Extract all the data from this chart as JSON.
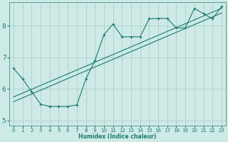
{
  "xlabel": "Humidex (Indice chaleur)",
  "xlim": [
    -0.5,
    23.5
  ],
  "ylim": [
    4.85,
    8.75
  ],
  "yticks": [
    5,
    6,
    7,
    8
  ],
  "xticks": [
    0,
    1,
    2,
    3,
    4,
    5,
    6,
    7,
    8,
    9,
    10,
    11,
    12,
    13,
    14,
    15,
    16,
    17,
    18,
    19,
    20,
    21,
    22,
    23
  ],
  "bg_color": "#ceeae6",
  "grid_color": "#aacfca",
  "line_color": "#1a7a6e",
  "series1_x": [
    0,
    1,
    2,
    3,
    4,
    5,
    6,
    7,
    8,
    9,
    10,
    11,
    12,
    13,
    14,
    15,
    16,
    17,
    18,
    19,
    20,
    21,
    22,
    23
  ],
  "series1_y": [
    6.65,
    6.32,
    5.92,
    5.52,
    5.45,
    5.45,
    5.45,
    5.5,
    6.32,
    6.9,
    7.72,
    8.05,
    7.65,
    7.65,
    7.65,
    8.22,
    8.23,
    8.23,
    7.93,
    7.93,
    8.55,
    8.38,
    8.22,
    8.6
  ],
  "series2_x": [
    0,
    23
  ],
  "series2_y": [
    5.75,
    8.55
  ],
  "series3_x": [
    0,
    23
  ],
  "series3_y": [
    5.6,
    8.4
  ]
}
